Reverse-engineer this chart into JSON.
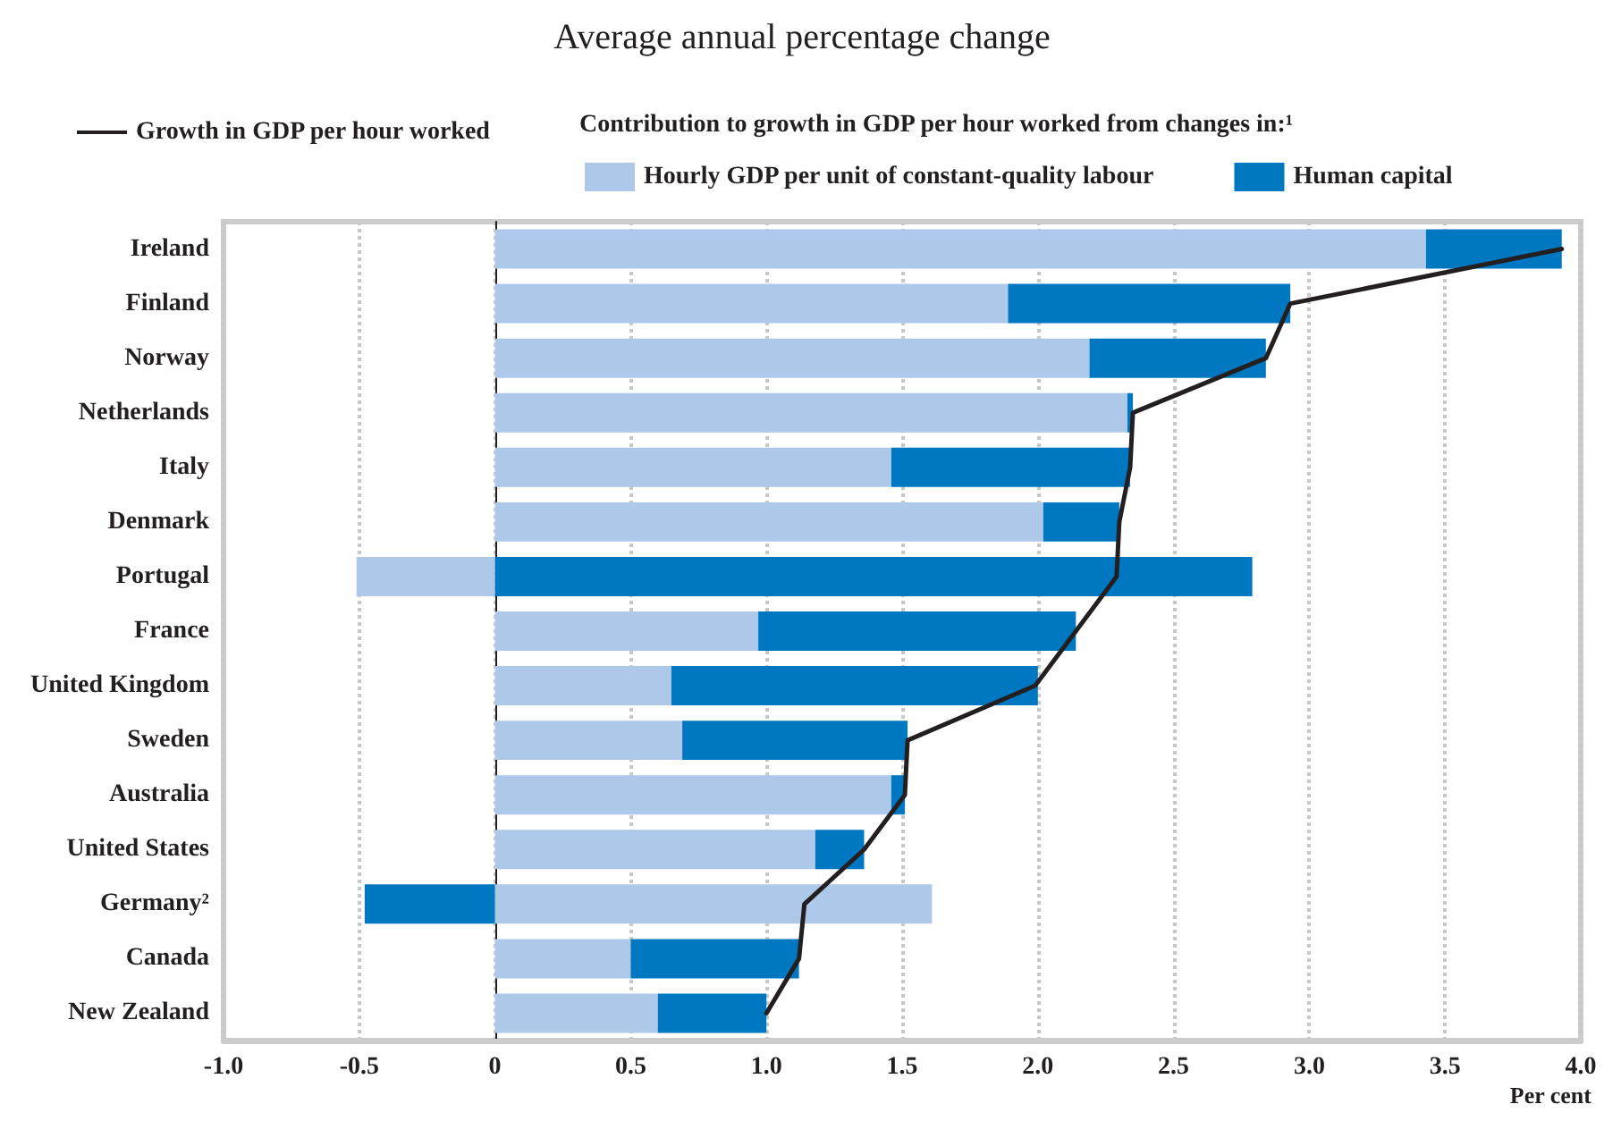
{
  "chart_data": {
    "type": "bar",
    "orientation": "horizontal",
    "stacked": true,
    "subtitle": "Average annual percentage change",
    "legend_title": "Contribution to growth in GDP per hour worked from changes in:¹",
    "xlabel": "Per cent",
    "categories": [
      "Ireland",
      "Finland",
      "Norway",
      "Netherlands",
      "Italy",
      "Denmark",
      "Portugal",
      "France",
      "United Kingdom",
      "Sweden",
      "Australia",
      "United States",
      "Germany²",
      "Canada",
      "New Zealand"
    ],
    "series": [
      {
        "name": "Hourly GDP per unit of constant-quality labour",
        "color": "#adc8e8",
        "values": [
          3.43,
          1.89,
          2.19,
          2.33,
          1.46,
          2.02,
          -0.51,
          0.97,
          0.65,
          0.69,
          1.46,
          1.18,
          1.61,
          0.5,
          0.6
        ]
      },
      {
        "name": "Human capital",
        "color": "#0078c1",
        "values": [
          0.5,
          1.04,
          0.65,
          0.02,
          0.88,
          0.28,
          2.79,
          1.17,
          1.35,
          0.83,
          0.05,
          0.18,
          -0.48,
          0.62,
          0.4
        ]
      },
      {
        "name": "Growth in GDP per hour worked",
        "type": "line",
        "color": "#231f20",
        "values": [
          3.93,
          2.93,
          2.84,
          2.35,
          2.34,
          2.3,
          2.29,
          2.14,
          1.99,
          1.52,
          1.51,
          1.36,
          1.14,
          1.12,
          1.0
        ]
      }
    ],
    "xlim": [
      -1.0,
      4.0
    ],
    "xticks": [
      {
        "value": -1.0,
        "label": "-1.0"
      },
      {
        "value": -0.5,
        "label": "-0.5"
      },
      0,
      {
        "value": 0.5,
        "label": "0.5"
      },
      {
        "value": 1.0,
        "label": "1.0"
      },
      {
        "value": 1.5,
        "label": "1.5"
      },
      {
        "value": 2.0,
        "label": "2.0"
      },
      {
        "value": 2.5,
        "label": "2.5"
      },
      {
        "value": 3.0,
        "label": "3.0"
      },
      {
        "value": 3.5,
        "label": "3.5"
      },
      {
        "value": 4.0,
        "label": "4.0"
      }
    ],
    "grid": "x",
    "legend": "top",
    "marker": "none",
    "line_style": "solid"
  }
}
